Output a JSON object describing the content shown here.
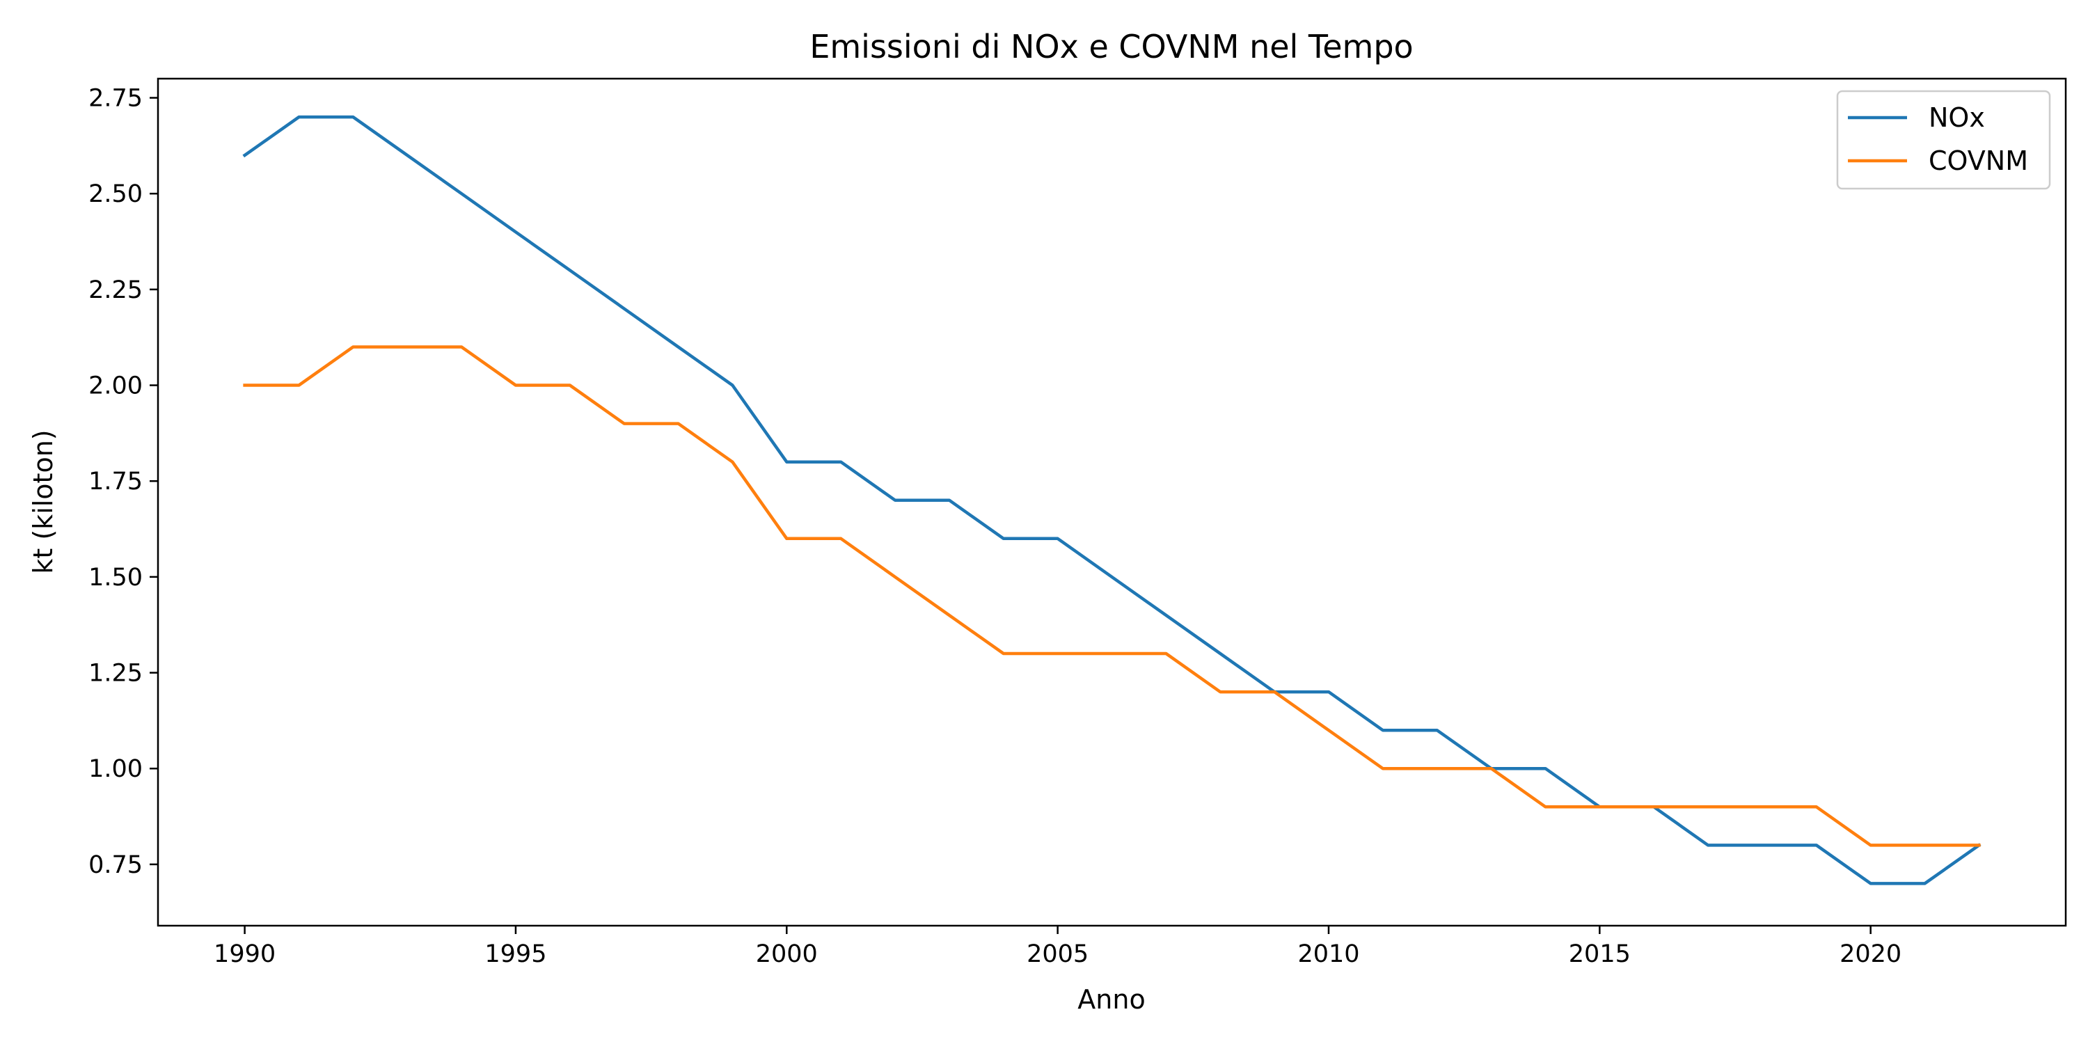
{
  "chart_data": {
    "type": "line",
    "title": "Emissioni di NOx e COVNM nel Tempo",
    "xlabel": "Anno",
    "ylabel": "kt (kiloton)",
    "xlim": [
      1988.4,
      2023.6
    ],
    "ylim": [
      0.59,
      2.8
    ],
    "x_ticks": [
      1990,
      1995,
      2000,
      2005,
      2010,
      2015,
      2020
    ],
    "y_ticks": [
      0.75,
      1.0,
      1.25,
      1.5,
      1.75,
      2.0,
      2.25,
      2.5,
      2.75
    ],
    "y_tick_labels": [
      "0.75",
      "1.00",
      "1.25",
      "1.50",
      "1.75",
      "2.00",
      "2.25",
      "2.50",
      "2.75"
    ],
    "grid": false,
    "legend_position": "top-right",
    "x": [
      1990,
      1991,
      1992,
      1993,
      1994,
      1995,
      1996,
      1997,
      1998,
      1999,
      2000,
      2001,
      2002,
      2003,
      2004,
      2005,
      2006,
      2007,
      2008,
      2009,
      2010,
      2011,
      2012,
      2013,
      2014,
      2015,
      2016,
      2017,
      2018,
      2019,
      2020,
      2021,
      2022
    ],
    "series": [
      {
        "name": "NOx",
        "color": "#1f77b4",
        "values": [
          2.6,
          2.7,
          2.7,
          2.6,
          2.5,
          2.4,
          2.3,
          2.2,
          2.1,
          2.0,
          1.8,
          1.8,
          1.7,
          1.7,
          1.6,
          1.6,
          1.5,
          1.4,
          1.3,
          1.2,
          1.2,
          1.1,
          1.1,
          1.0,
          1.0,
          0.9,
          0.9,
          0.8,
          0.8,
          0.8,
          0.7,
          0.7,
          0.8
        ]
      },
      {
        "name": "COVNM",
        "color": "#ff7f0e",
        "values": [
          2.0,
          2.0,
          2.1,
          2.1,
          2.1,
          2.0,
          2.0,
          1.9,
          1.9,
          1.8,
          1.6,
          1.6,
          1.5,
          1.4,
          1.3,
          1.3,
          1.3,
          1.3,
          1.2,
          1.2,
          1.1,
          1.0,
          1.0,
          1.0,
          0.9,
          0.9,
          0.9,
          0.9,
          0.9,
          0.9,
          0.8,
          0.8,
          0.8
        ]
      }
    ]
  }
}
